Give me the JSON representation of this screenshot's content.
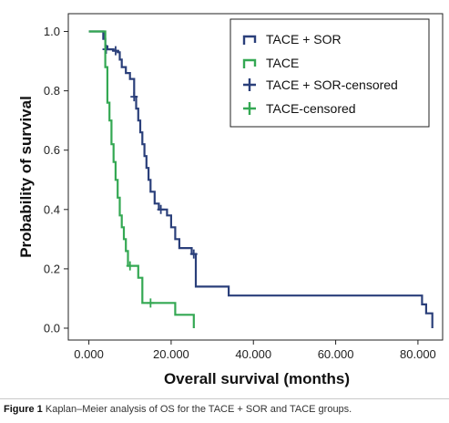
{
  "chart_data": {
    "type": "line",
    "title": "",
    "xlabel": "Overall survival (months)",
    "ylabel": "Probability of survival",
    "xlim": [
      -5,
      86
    ],
    "ylim": [
      -0.04,
      1.06
    ],
    "xticks": [
      0,
      20,
      40,
      60,
      80
    ],
    "xtick_labels": [
      "0.000",
      "20.000",
      "40.000",
      "60.000",
      "80.000"
    ],
    "yticks": [
      0,
      0.2,
      0.4,
      0.6,
      0.8,
      1.0
    ],
    "ytick_labels": [
      "0.0",
      "0.2",
      "0.4",
      "0.6",
      "0.8",
      "1.0"
    ],
    "grid": false,
    "legend_position": "top-right",
    "legend": [
      "TACE + SOR",
      "TACE",
      "TACE + SOR-censored",
      "TACE-censored"
    ],
    "series": [
      {
        "name": "TACE + SOR",
        "color": "#2a3f7a",
        "x": [
          0,
          3,
          3.5,
          4,
          4.5,
          5,
          6,
          7,
          7.5,
          8,
          9,
          10,
          11,
          11.5,
          12,
          12.5,
          13,
          13.5,
          14,
          14.5,
          15,
          16,
          17,
          19,
          20,
          21,
          22,
          25,
          26,
          34,
          81,
          82,
          83.5
        ],
        "y": [
          1.0,
          1.0,
          0.975,
          0.95,
          0.94,
          0.94,
          0.935,
          0.93,
          0.905,
          0.88,
          0.86,
          0.84,
          0.78,
          0.74,
          0.7,
          0.66,
          0.62,
          0.58,
          0.54,
          0.5,
          0.46,
          0.42,
          0.4,
          0.38,
          0.34,
          0.3,
          0.27,
          0.25,
          0.14,
          0.11,
          0.08,
          0.05,
          0.0
        ],
        "censored": [
          [
            4.2,
            0.94
          ],
          [
            6.5,
            0.935
          ],
          [
            11,
            0.78
          ],
          [
            17.5,
            0.4
          ],
          [
            25.5,
            0.25
          ]
        ]
      },
      {
        "name": "TACE",
        "color": "#34a853",
        "x": [
          0,
          3.5,
          4,
          4.5,
          5,
          5.5,
          6,
          6.5,
          7,
          7.5,
          8,
          8.5,
          9,
          9.5,
          12,
          13,
          21,
          25.5
        ],
        "y": [
          1.0,
          1.0,
          0.88,
          0.76,
          0.7,
          0.62,
          0.56,
          0.5,
          0.44,
          0.38,
          0.34,
          0.3,
          0.26,
          0.21,
          0.17,
          0.085,
          0.045,
          0.0
        ],
        "censored": [
          [
            10,
            0.21
          ],
          [
            15,
            0.085
          ]
        ]
      }
    ]
  },
  "caption": {
    "label": "Figure 1",
    "text": "Kaplan–Meier analysis of OS for the TACE + SOR and TACE groups."
  }
}
